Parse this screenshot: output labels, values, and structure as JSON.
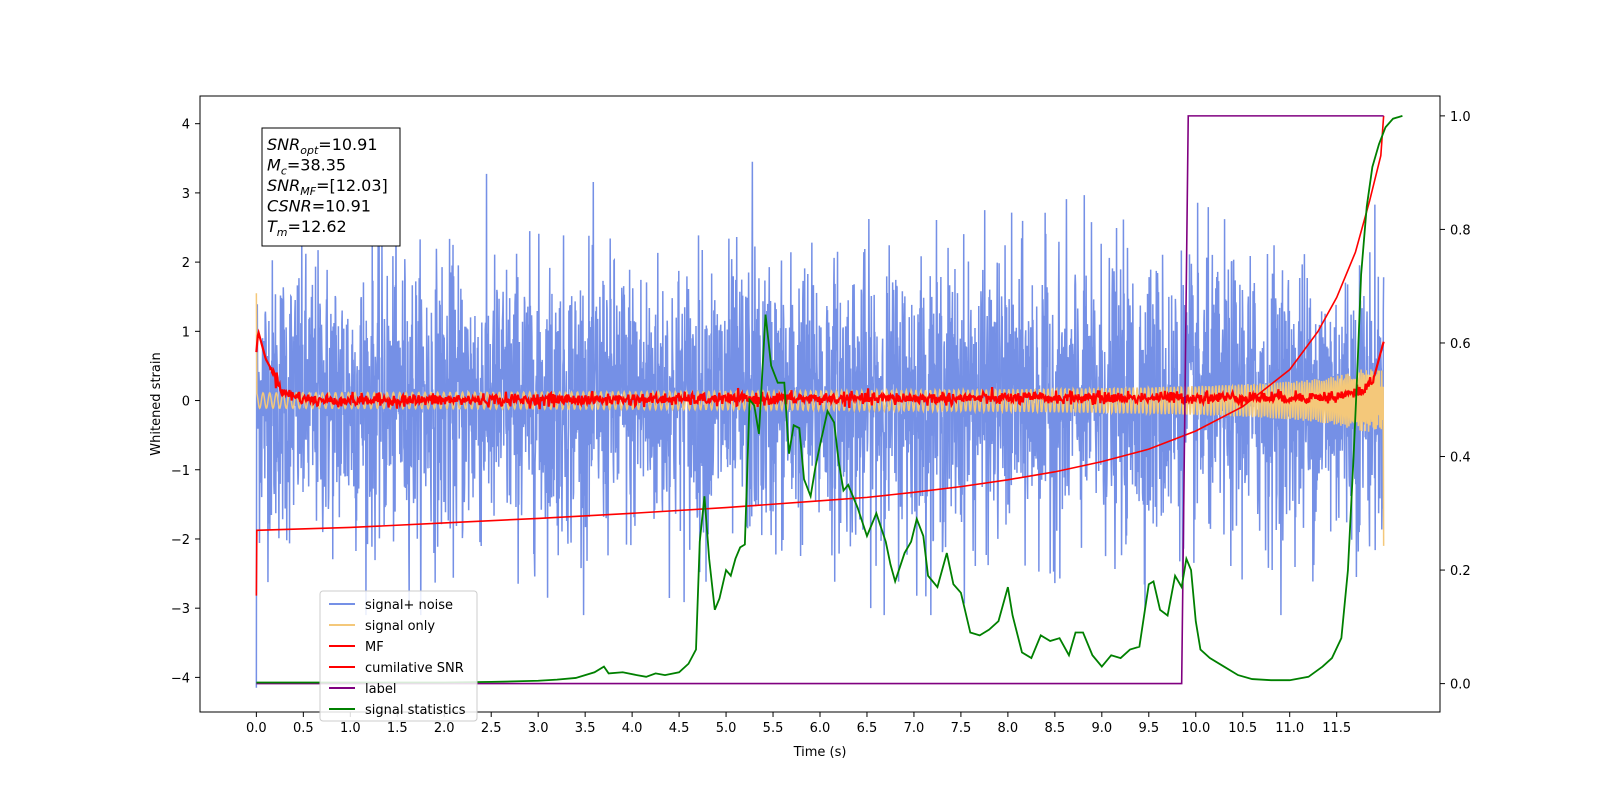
{
  "chart_data": {
    "type": "line",
    "xlabel": "Time (s)",
    "ylabel": "Whitened strain",
    "xlim": [
      -0.6,
      12.6
    ],
    "ylim": [
      -4.5,
      4.4
    ],
    "y2lim": [
      -0.05,
      1.035
    ],
    "grid": false,
    "legend_position": "lower-left",
    "x_ticks": [
      "0.0",
      "0.5",
      "1.0",
      "1.5",
      "2.0",
      "2.5",
      "3.0",
      "3.5",
      "4.0",
      "4.5",
      "5.0",
      "5.5",
      "6.0",
      "6.5",
      "7.0",
      "7.5",
      "8.0",
      "8.5",
      "9.0",
      "9.5",
      "10.0",
      "10.5",
      "11.0",
      "11.5"
    ],
    "y_ticks": [
      "4",
      "3",
      "2",
      "1",
      "0",
      "−1",
      "−2",
      "−3",
      "−4"
    ],
    "y2_ticks": [
      "1.0",
      "0.8",
      "0.6",
      "0.4",
      "0.2",
      "0.0"
    ],
    "annotation": [
      {
        "base": "SNR",
        "sub": "opt",
        "value": "=10.91"
      },
      {
        "base": "M",
        "sub": "c",
        "value": "=38.35"
      },
      {
        "base": "SNR",
        "sub": "MF",
        "value": "=[12.03]"
      },
      {
        "base": "CSNR",
        "sub": "",
        "value": "=10.91"
      },
      {
        "base": "T",
        "sub": "m",
        "value": "=12.62"
      }
    ],
    "series": [
      {
        "name": "signal+ noise",
        "color": "#7590e6",
        "axis": "left",
        "kind": "noise",
        "x_range": [
          0.0,
          12.0
        ],
        "amplitude": 1.0,
        "y_extremes": [
          3.45,
          -4.15
        ]
      },
      {
        "name": "signal only",
        "color": "#f4c87a",
        "axis": "left",
        "kind": "chirp",
        "x_range": [
          0.0,
          12.0
        ],
        "peak_amplitude": 0.45,
        "end_value": -2.1,
        "start_value": 1.55
      },
      {
        "name": "MF",
        "color": "#ff0000",
        "axis": "left",
        "kind": "matched-filter",
        "x_range": [
          0.0,
          12.0
        ],
        "points": [
          [
            0.0,
            0.7
          ],
          [
            0.02,
            1.0
          ],
          [
            0.1,
            0.6
          ],
          [
            0.3,
            0.1
          ],
          [
            0.6,
            0.0
          ],
          [
            11.5,
            0.05
          ],
          [
            11.8,
            0.15
          ],
          [
            11.9,
            0.35
          ],
          [
            12.0,
            0.85
          ]
        ]
      },
      {
        "name": "cumilative SNR",
        "color": "#ff0000",
        "axis": "right",
        "points": [
          [
            0.0,
            0.155
          ],
          [
            0.005,
            0.27
          ],
          [
            1,
            0.275
          ],
          [
            2,
            0.283
          ],
          [
            3,
            0.291
          ],
          [
            4,
            0.3
          ],
          [
            5,
            0.31
          ],
          [
            6,
            0.322
          ],
          [
            6.5,
            0.328
          ],
          [
            7,
            0.337
          ],
          [
            7.5,
            0.347
          ],
          [
            8,
            0.359
          ],
          [
            8.5,
            0.373
          ],
          [
            9,
            0.391
          ],
          [
            9.5,
            0.413
          ],
          [
            10,
            0.445
          ],
          [
            10.5,
            0.488
          ],
          [
            11,
            0.553
          ],
          [
            11.3,
            0.62
          ],
          [
            11.5,
            0.68
          ],
          [
            11.7,
            0.76
          ],
          [
            11.85,
            0.85
          ],
          [
            11.97,
            0.93
          ],
          [
            12.0,
            1.0
          ]
        ]
      },
      {
        "name": "label",
        "color": "#800080",
        "axis": "right",
        "points": [
          [
            0.0,
            0.0
          ],
          [
            9.85,
            0.0
          ],
          [
            9.92,
            1.0
          ],
          [
            12.0,
            1.0
          ]
        ]
      },
      {
        "name": "signal statistics",
        "color": "#008000",
        "axis": "right",
        "points": [
          [
            0.0,
            0.002
          ],
          [
            0.5,
            0.002
          ],
          [
            1.0,
            0.002
          ],
          [
            1.5,
            0.002
          ],
          [
            2.0,
            0.002
          ],
          [
            2.5,
            0.003
          ],
          [
            3.0,
            0.005
          ],
          [
            3.2,
            0.007
          ],
          [
            3.4,
            0.01
          ],
          [
            3.6,
            0.02
          ],
          [
            3.7,
            0.03
          ],
          [
            3.75,
            0.018
          ],
          [
            3.9,
            0.02
          ],
          [
            4.05,
            0.015
          ],
          [
            4.15,
            0.012
          ],
          [
            4.25,
            0.018
          ],
          [
            4.35,
            0.015
          ],
          [
            4.5,
            0.02
          ],
          [
            4.6,
            0.035
          ],
          [
            4.68,
            0.06
          ],
          [
            4.72,
            0.25
          ],
          [
            4.77,
            0.33
          ],
          [
            4.82,
            0.22
          ],
          [
            4.88,
            0.13
          ],
          [
            4.93,
            0.15
          ],
          [
            5.0,
            0.2
          ],
          [
            5.05,
            0.19
          ],
          [
            5.1,
            0.22
          ],
          [
            5.15,
            0.24
          ],
          [
            5.2,
            0.245
          ],
          [
            5.25,
            0.5
          ],
          [
            5.3,
            0.49
          ],
          [
            5.35,
            0.44
          ],
          [
            5.42,
            0.65
          ],
          [
            5.48,
            0.56
          ],
          [
            5.55,
            0.53
          ],
          [
            5.62,
            0.53
          ],
          [
            5.67,
            0.405
          ],
          [
            5.72,
            0.455
          ],
          [
            5.78,
            0.45
          ],
          [
            5.83,
            0.36
          ],
          [
            5.9,
            0.33
          ],
          [
            5.95,
            0.38
          ],
          [
            6.0,
            0.42
          ],
          [
            6.08,
            0.48
          ],
          [
            6.15,
            0.46
          ],
          [
            6.2,
            0.39
          ],
          [
            6.25,
            0.34
          ],
          [
            6.3,
            0.35
          ],
          [
            6.4,
            0.31
          ],
          [
            6.5,
            0.26
          ],
          [
            6.6,
            0.3
          ],
          [
            6.7,
            0.25
          ],
          [
            6.75,
            0.21
          ],
          [
            6.8,
            0.18
          ],
          [
            6.9,
            0.23
          ],
          [
            6.97,
            0.25
          ],
          [
            7.03,
            0.29
          ],
          [
            7.1,
            0.26
          ],
          [
            7.15,
            0.19
          ],
          [
            7.25,
            0.17
          ],
          [
            7.35,
            0.23
          ],
          [
            7.42,
            0.175
          ],
          [
            7.5,
            0.16
          ],
          [
            7.6,
            0.09
          ],
          [
            7.7,
            0.085
          ],
          [
            7.8,
            0.095
          ],
          [
            7.9,
            0.11
          ],
          [
            8.0,
            0.17
          ],
          [
            8.05,
            0.12
          ],
          [
            8.15,
            0.055
          ],
          [
            8.25,
            0.045
          ],
          [
            8.35,
            0.085
          ],
          [
            8.45,
            0.075
          ],
          [
            8.55,
            0.08
          ],
          [
            8.65,
            0.05
          ],
          [
            8.72,
            0.09
          ],
          [
            8.8,
            0.09
          ],
          [
            8.9,
            0.05
          ],
          [
            9.0,
            0.03
          ],
          [
            9.1,
            0.05
          ],
          [
            9.2,
            0.045
          ],
          [
            9.3,
            0.06
          ],
          [
            9.4,
            0.065
          ],
          [
            9.5,
            0.175
          ],
          [
            9.55,
            0.18
          ],
          [
            9.62,
            0.13
          ],
          [
            9.7,
            0.12
          ],
          [
            9.78,
            0.19
          ],
          [
            9.85,
            0.17
          ],
          [
            9.9,
            0.22
          ],
          [
            9.95,
            0.2
          ],
          [
            10.0,
            0.11
          ],
          [
            10.05,
            0.06
          ],
          [
            10.15,
            0.045
          ],
          [
            10.3,
            0.03
          ],
          [
            10.45,
            0.015
          ],
          [
            10.6,
            0.008
          ],
          [
            10.8,
            0.006
          ],
          [
            11.0,
            0.006
          ],
          [
            11.2,
            0.012
          ],
          [
            11.35,
            0.03
          ],
          [
            11.45,
            0.045
          ],
          [
            11.55,
            0.08
          ],
          [
            11.62,
            0.2
          ],
          [
            11.68,
            0.4
          ],
          [
            11.72,
            0.55
          ],
          [
            11.76,
            0.72
          ],
          [
            11.82,
            0.84
          ],
          [
            11.88,
            0.91
          ],
          [
            11.95,
            0.95
          ],
          [
            12.02,
            0.98
          ],
          [
            12.1,
            0.995
          ],
          [
            12.2,
            1.0
          ]
        ]
      }
    ]
  }
}
